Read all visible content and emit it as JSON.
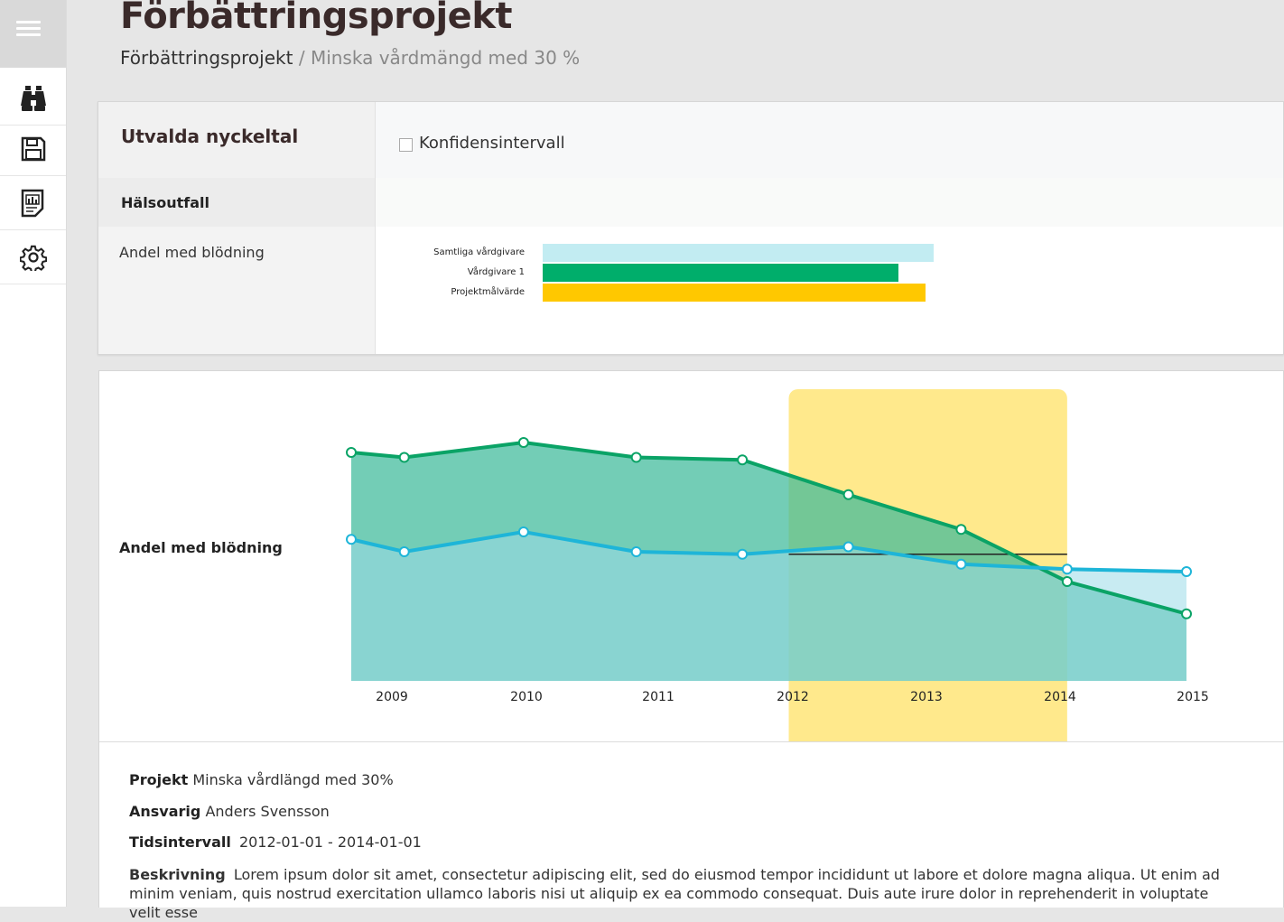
{
  "header": {
    "title": "Förbättringsprojekt",
    "breadcrumb_root": "Förbättringsprojekt",
    "breadcrumb_sep": "/",
    "breadcrumb_current": "Minska vårdmängd med 30 %"
  },
  "sidebar": {
    "items": [
      {
        "icon": "binoculars-icon"
      },
      {
        "icon": "save-icon"
      },
      {
        "icon": "report-icon"
      },
      {
        "icon": "gear-icon"
      }
    ]
  },
  "keyfigures": {
    "title": "Utvalda nyckeltal",
    "ci_label": "Konfidensintervall",
    "group_label": "Hälsoutfall",
    "metric_label": "Andel med blödning",
    "bars": [
      {
        "label": "Samtliga vårdgivare",
        "value": 1.0,
        "color": "#c2ecf2"
      },
      {
        "label": "Vårdgivare 1",
        "value": 0.91,
        "color": "#00ae6b"
      },
      {
        "label": "Projektmålvärde",
        "value": 0.98,
        "color": "#ffc800"
      }
    ]
  },
  "chart_data": {
    "type": "area",
    "ylabel": "Andel med blödning",
    "x_ticks": [
      "2009",
      "2010",
      "2011",
      "2012",
      "2013",
      "2014",
      "2015"
    ],
    "x_range": [
      2008.7,
      2015.0
    ],
    "y_range": [
      0,
      100
    ],
    "highlight_range": [
      2012.0,
      2014.1
    ],
    "highlight_color": "#ffe98c",
    "target_line": {
      "x": [
        2012.0,
        2014.1
      ],
      "y": 51
    },
    "series": [
      {
        "color": "#0aa366",
        "fill": "#3dba9a",
        "x": [
          2008.7,
          2009.1,
          2010.0,
          2010.85,
          2011.65,
          2012.45,
          2013.3,
          2014.1,
          2015.0
        ],
        "y": [
          92,
          90,
          96,
          90,
          89,
          75,
          61,
          40,
          27
        ]
      },
      {
        "color": "#1eb5d8",
        "fill": "#9adbe8",
        "x": [
          2008.7,
          2009.1,
          2010.0,
          2010.85,
          2011.65,
          2012.45,
          2013.3,
          2014.1,
          2015.0
        ],
        "y": [
          57,
          52,
          60,
          52,
          51,
          54,
          47,
          45,
          44
        ]
      }
    ]
  },
  "project": {
    "project_label": "Projekt",
    "project_value": "Minska vårdlängd med 30%",
    "owner_label": "Ansvarig",
    "owner_value": "Anders Svensson",
    "interval_label": "Tidsintervall",
    "interval_value": "2012-01-01 -  2014-01-01",
    "desc_label": "Beskrivning",
    "desc_value": "Lorem ipsum dolor sit amet, consectetur adipiscing elit, sed do eiusmod tempor incididunt ut labore et dolore magna aliqua. Ut enim ad minim veniam, quis nostrud exercitation ullamco laboris nisi ut aliquip ex ea commodo consequat. Duis aute irure dolor in reprehenderit in voluptate velit esse"
  }
}
